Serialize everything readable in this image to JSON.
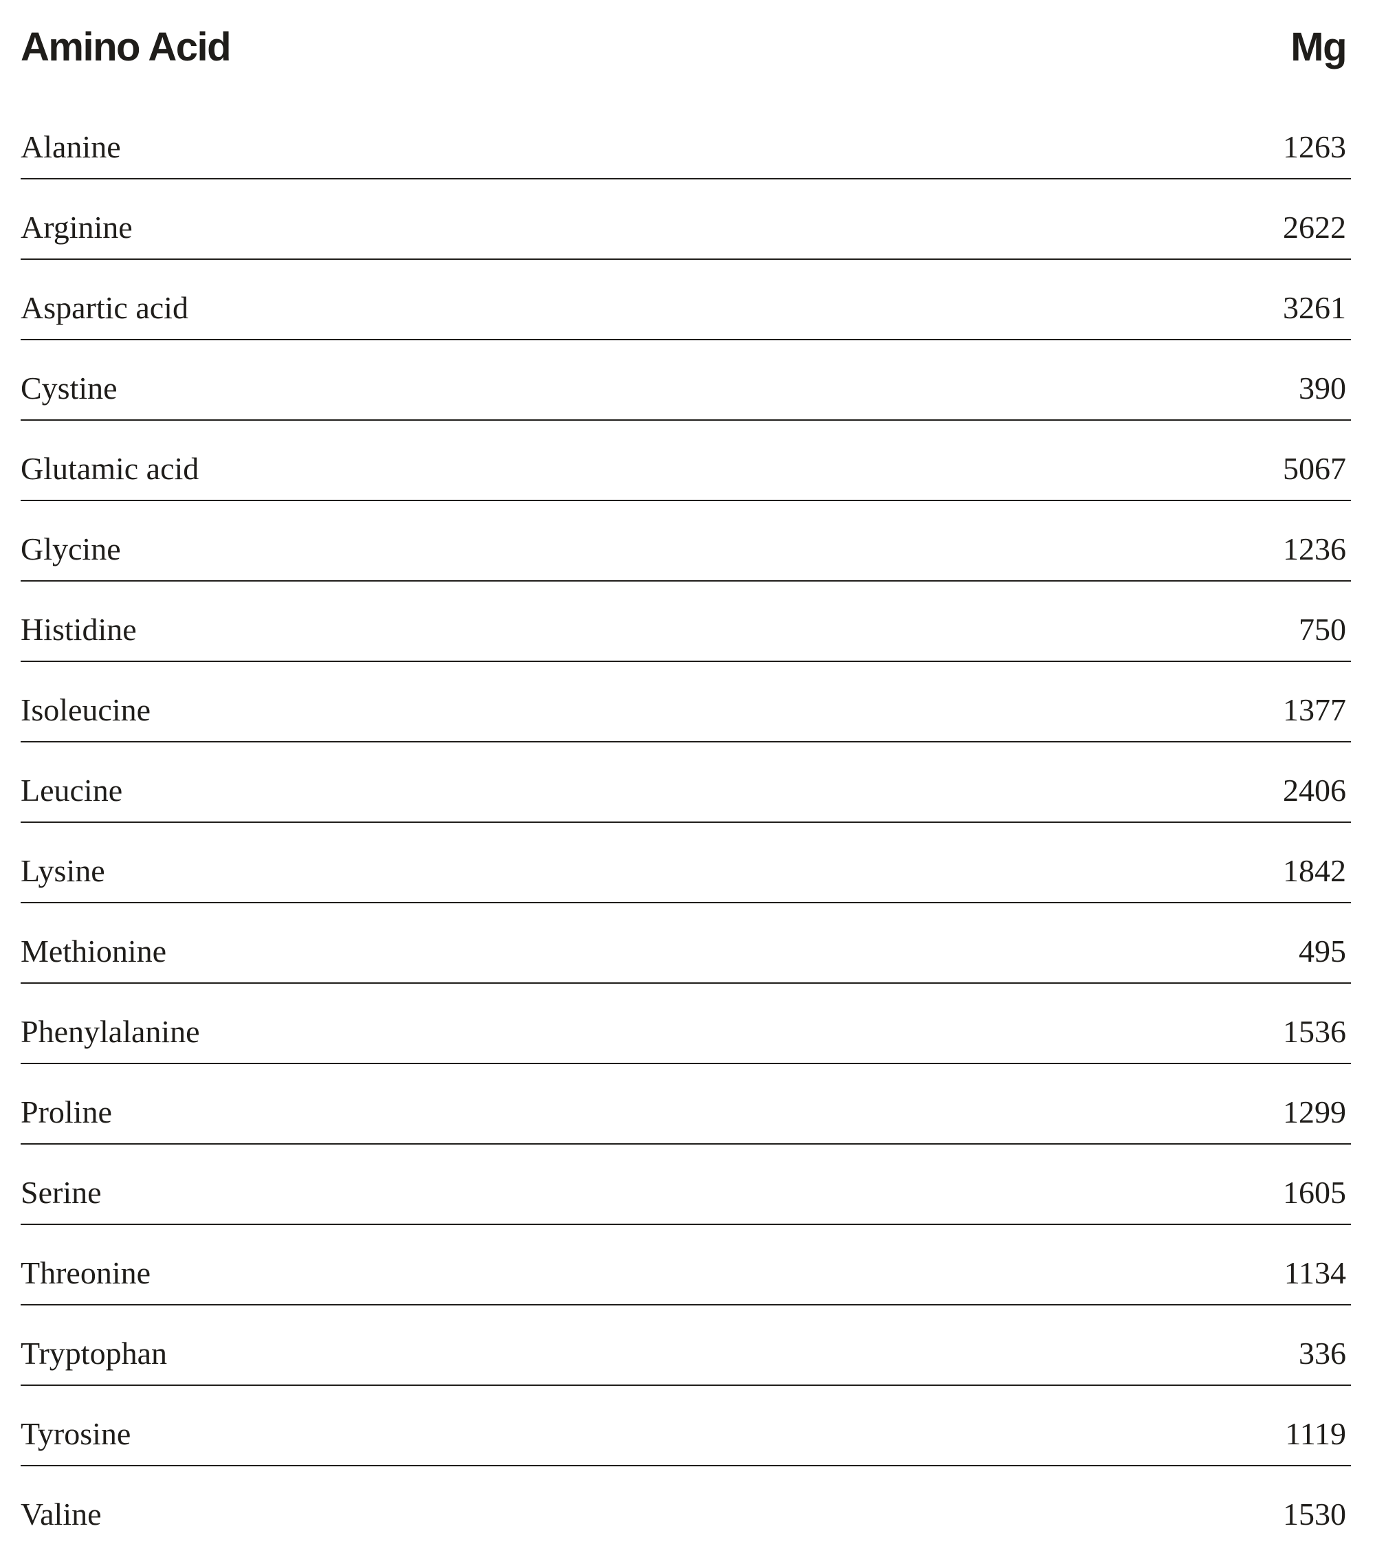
{
  "table": {
    "headers": {
      "name": "Amino Acid",
      "value": "Mg"
    },
    "rows": [
      {
        "name": "Alanine",
        "value": "1263"
      },
      {
        "name": "Arginine",
        "value": "2622"
      },
      {
        "name": "Aspartic acid",
        "value": "3261"
      },
      {
        "name": "Cystine",
        "value": "390"
      },
      {
        "name": "Glutamic acid",
        "value": "5067"
      },
      {
        "name": "Glycine",
        "value": "1236"
      },
      {
        "name": "Histidine",
        "value": "750"
      },
      {
        "name": "Isoleucine",
        "value": "1377"
      },
      {
        "name": "Leucine",
        "value": "2406"
      },
      {
        "name": "Lysine",
        "value": "1842"
      },
      {
        "name": "Methionine",
        "value": "495"
      },
      {
        "name": "Phenylalanine",
        "value": "1536"
      },
      {
        "name": "Proline",
        "value": "1299"
      },
      {
        "name": "Serine",
        "value": "1605"
      },
      {
        "name": "Threonine",
        "value": "1134"
      },
      {
        "name": "Tryptophan",
        "value": "336"
      },
      {
        "name": "Tyrosine",
        "value": "1119"
      },
      {
        "name": "Valine",
        "value": "1530"
      }
    ]
  },
  "colors": {
    "text": "#1f1d1a",
    "background": "#ffffff"
  }
}
